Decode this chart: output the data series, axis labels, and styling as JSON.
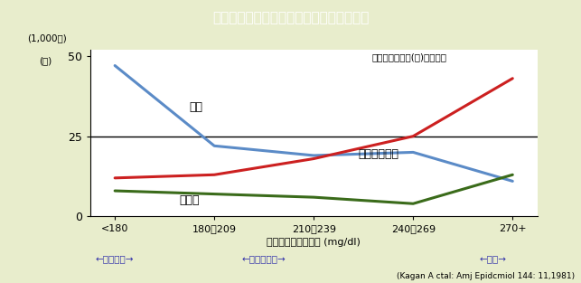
{
  "title": "年齢標準化血清コレステロール値別死亡率",
  "title_bg": "#8a8a8a",
  "background_color": "#e8edcc",
  "plot_bg": "#ffffff",
  "x_labels": [
    "<180",
    "180～209",
    "210～239",
    "240～269",
    "270+"
  ],
  "x_values": [
    0,
    1,
    2,
    3,
    4
  ],
  "cancer": [
    47,
    22,
    19,
    20,
    11
  ],
  "cancer_color": "#5b8bc7",
  "stroke": [
    8,
    7,
    6,
    4,
    13
  ],
  "stroke_color": "#3a6b1a",
  "heart": [
    12,
    13,
    18,
    25,
    43
  ],
  "heart_color": "#cc2020",
  "hline_y": 25,
  "ylim": [
    0,
    52
  ],
  "yticks": [
    0,
    25,
    50
  ],
  "xlabel": "血清コレステロール (mg/dl)",
  "ylabel_top": "(1,000対)",
  "ylabel_main": "(人)",
  "annotation_hawaii": "ハワイ系日系人(男)調査資料",
  "annotation_cancer": "がん",
  "annotation_stroke": "脳卒中",
  "annotation_heart": "虚血性心疾患",
  "arrow_old_japan": "←昆の日本→",
  "arrow_cur_japan": "←現在の日本→",
  "arrow_europe": "←欧米→",
  "citation": "(Kagan A ctal: Amj Epidcmiol 144: 11,1981)"
}
